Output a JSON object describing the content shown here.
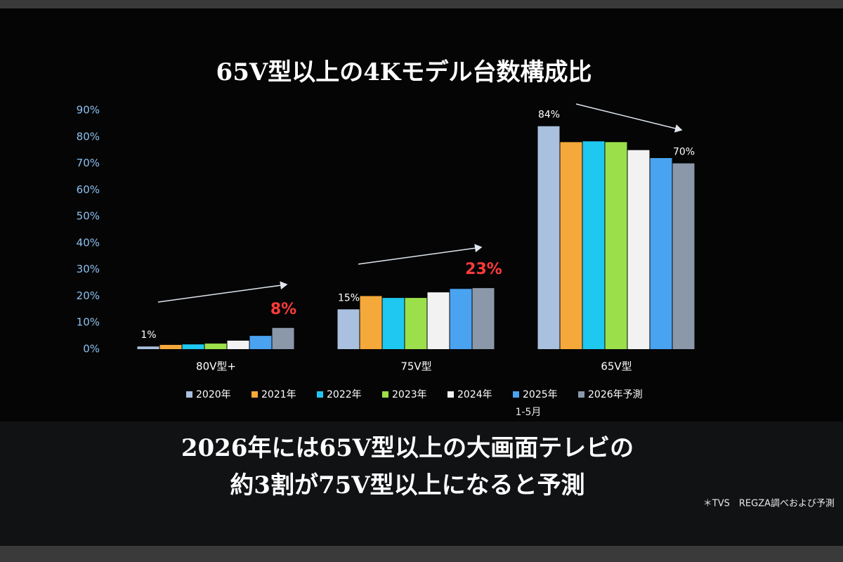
{
  "chart_data": {
    "type": "bar",
    "title": "65V型以上の4Kモデル台数構成比",
    "categories": [
      "80V型+",
      "75V型",
      "65V型"
    ],
    "series": [
      {
        "name": "2020年",
        "color": "#a9c0de",
        "values": [
          1,
          15,
          84
        ],
        "value_labels": [
          "1%",
          "15%",
          "84%"
        ],
        "value_label_colors": [
          "#ffffff",
          "#ffffff",
          "#ffffff"
        ]
      },
      {
        "name": "2021年",
        "color": "#f5a93a",
        "values": [
          1.6,
          20,
          78
        ]
      },
      {
        "name": "2022年",
        "color": "#1ec8f0",
        "values": [
          1.8,
          19.3,
          78.3
        ]
      },
      {
        "name": "2023年",
        "color": "#9be04a",
        "values": [
          2.1,
          19.3,
          78
        ]
      },
      {
        "name": "2024年",
        "color": "#f2f2f2",
        "values": [
          3.2,
          21.4,
          75
        ]
      },
      {
        "name": "2025年",
        "color": "#4aa3f0",
        "values": [
          5,
          22.7,
          72
        ]
      },
      {
        "name": "2026年予測",
        "color": "#8a98aa",
        "values": [
          8,
          23,
          70
        ],
        "value_labels": [
          "8%",
          "23%",
          "70%"
        ],
        "value_label_colors": [
          "#ff3b3b",
          "#ff3b3b",
          "#ffffff"
        ]
      }
    ],
    "legend_note": "1-5月",
    "ylim": [
      0,
      90
    ],
    "yticks": [
      {
        "value": 0,
        "label": "0%"
      },
      {
        "value": 10,
        "label": "10%"
      },
      {
        "value": 20,
        "label": "20%"
      },
      {
        "value": 30,
        "label": "30%"
      },
      {
        "value": 40,
        "label": "40%"
      },
      {
        "value": 50,
        "label": "50%"
      },
      {
        "value": 60,
        "label": "60%"
      },
      {
        "value": 70,
        "label": "70%"
      },
      {
        "value": 80,
        "label": "80%"
      },
      {
        "value": 90,
        "label": "90%"
      }
    ],
    "grid": false,
    "annotations": [
      "2026年には65V型以上の大画面テレビの",
      "約3割が75V型以上になると予測",
      "＊TVS　REGZA調べおよび予測"
    ]
  }
}
